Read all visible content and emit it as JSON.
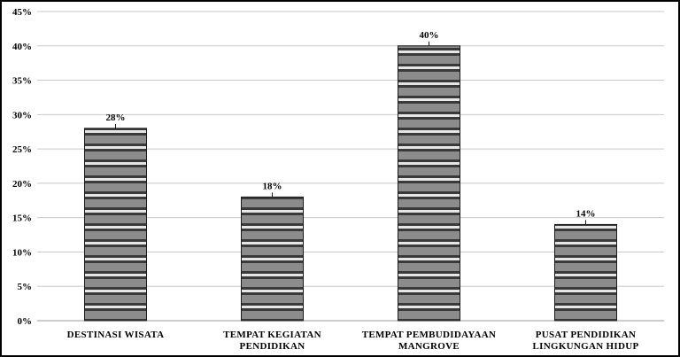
{
  "chart_data": {
    "type": "bar",
    "categories": [
      [
        "DESTINASI WISATA"
      ],
      [
        "TEMPAT KEGIATAN",
        "PENDIDIKAN"
      ],
      [
        "TEMPAT PEMBUDIDAYAAN",
        "MANGROVE"
      ],
      [
        "PUSAT PENDIDIKAN",
        "LINGKUNGAN HIDUP"
      ]
    ],
    "values": [
      28,
      18,
      40,
      14
    ],
    "data_labels": [
      "28%",
      "18%",
      "40%",
      "14%"
    ],
    "y_ticks": [
      "0%",
      "5%",
      "10%",
      "15%",
      "20%",
      "25%",
      "30%",
      "35%",
      "40%",
      "45%"
    ],
    "ylim": [
      0,
      45
    ],
    "grid": true,
    "legend": "none",
    "colors": {
      "gridline": "#c8c8c8",
      "axis": "#9a9a9a",
      "bar_dark": "#3a3a3a",
      "bar_mid": "#8c8c8c",
      "bar_light": "#e6e6e6",
      "bar_outline": "#1a1a1a"
    }
  }
}
